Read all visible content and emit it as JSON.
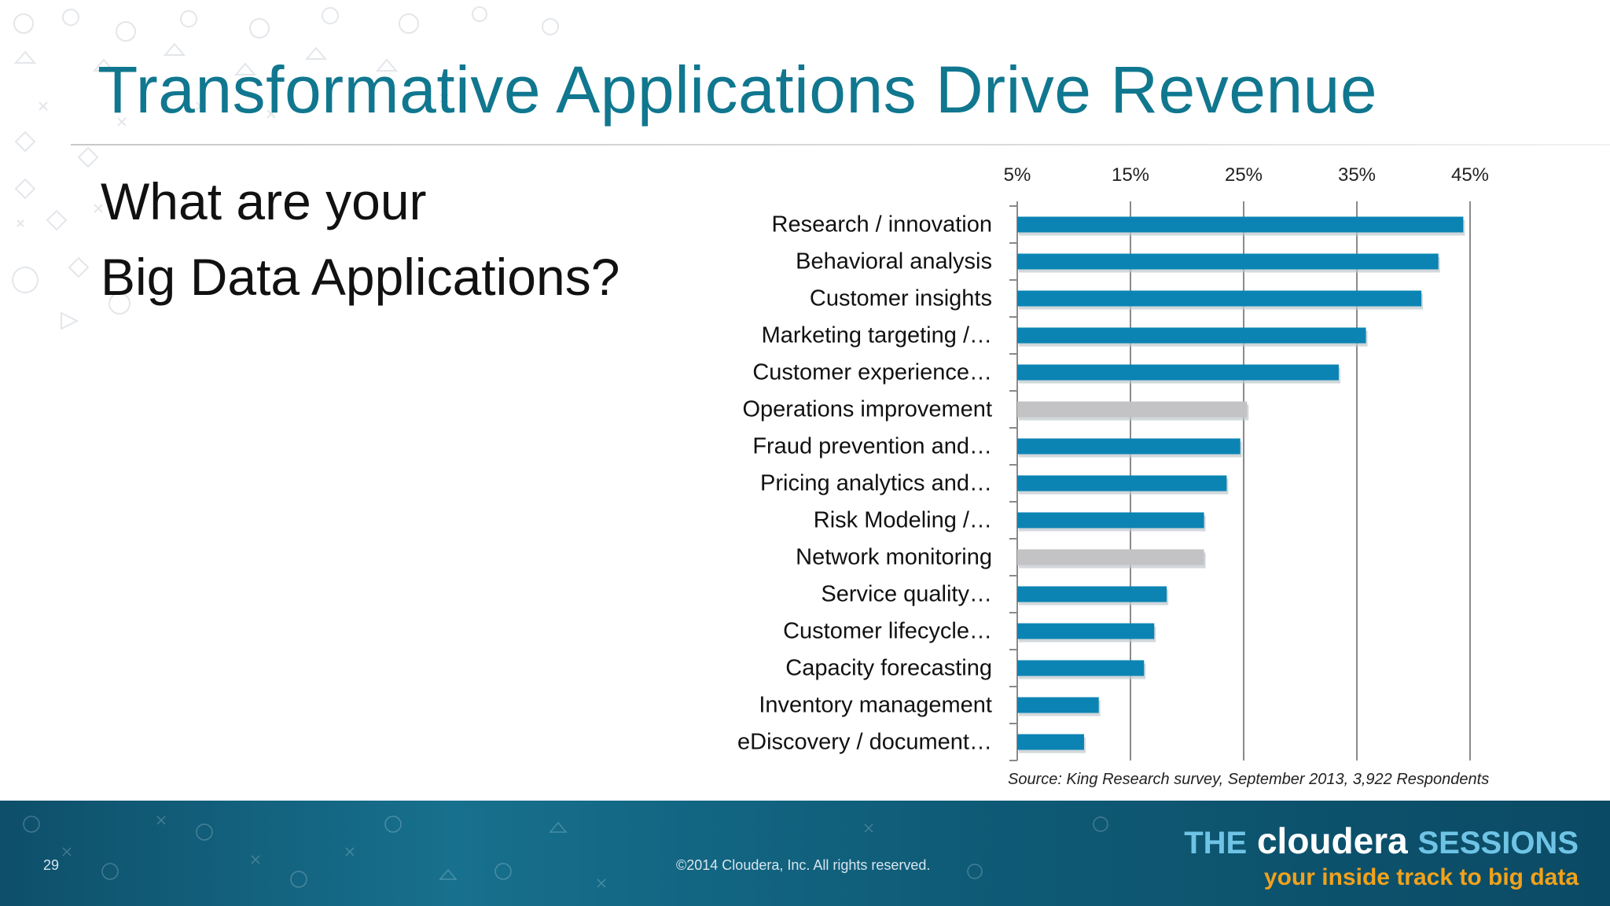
{
  "slide": {
    "title": "Transformative Applications Drive Revenue",
    "question_line1": "What are your",
    "question_line2": "Big Data Applications?",
    "source": "Source: King Research survey, September 2013, 3,922 Respondents",
    "page_number": "29",
    "copyright": "©2014 Cloudera, Inc. All rights reserved."
  },
  "brand": {
    "the": "THE",
    "name": "cloudera",
    "sessions": "SESSIONS",
    "tagline": "your inside track to big data"
  },
  "colors": {
    "title": "#10778f",
    "bar_primary": "#0b84b4",
    "bar_secondary": "#c3c3c6",
    "footer": "#17708d",
    "tagline": "#f0a21c"
  },
  "chart_data": {
    "type": "bar",
    "orientation": "horizontal",
    "title": "",
    "xlabel": "",
    "ylabel": "",
    "xlim": [
      5,
      45
    ],
    "ticks": [
      "5%",
      "15%",
      "25%",
      "35%",
      "45%"
    ],
    "tick_values": [
      5,
      15,
      25,
      35,
      45
    ],
    "axis_position": "top",
    "grid": true,
    "categories": [
      "Research / innovation",
      "Behavioral analysis",
      "Customer insights",
      "Marketing targeting /…",
      "Customer experience…",
      "Operations improvement",
      "Fraud prevention and…",
      "Pricing analytics and…",
      "Risk Modeling /…",
      "Network monitoring",
      "Service quality…",
      "Customer lifecycle…",
      "Capacity forecasting",
      "Inventory management",
      "eDiscovery / document…"
    ],
    "values": [
      44.4,
      42.2,
      40.7,
      35.8,
      33.4,
      25.3,
      24.7,
      23.5,
      21.5,
      21.5,
      18.2,
      17.1,
      16.2,
      12.2,
      10.9
    ],
    "highlight": [
      "primary",
      "primary",
      "primary",
      "primary",
      "primary",
      "secondary",
      "primary",
      "primary",
      "primary",
      "secondary",
      "primary",
      "primary",
      "primary",
      "primary",
      "primary"
    ]
  }
}
